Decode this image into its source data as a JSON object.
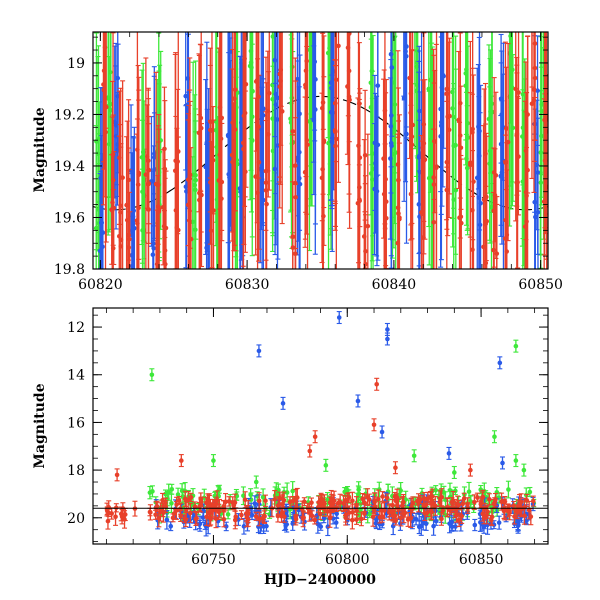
{
  "chart_data": [
    {
      "type": "scatter",
      "panel": "top",
      "title": "",
      "xlabel": "",
      "ylabel": "Magnitude",
      "xlim": [
        60819.5,
        60850.5
      ],
      "ylim": [
        19.8,
        18.88
      ],
      "y_inverted": true,
      "x_ticks": [
        60820,
        60830,
        60840,
        60850
      ],
      "x_tick_labels": [
        "60820",
        "60830",
        "60840",
        "60850"
      ],
      "y_ticks": [
        19,
        19.2,
        19.4,
        19.6,
        19.8
      ],
      "y_tick_labels": [
        "19",
        "19.2",
        "19.4",
        "19.6",
        "19.8"
      ],
      "legend": "none",
      "grid": false,
      "series": [
        {
          "color": "#e8402a",
          "points": [
            [
              60820.3,
              19.05,
              0.5
            ],
            [
              60820.8,
              19.5,
              0.4
            ],
            [
              60821.4,
              19.6,
              0.4
            ],
            [
              60821.9,
              19.7,
              0.35
            ],
            [
              60822.6,
              19.4,
              0.45
            ],
            [
              60823.2,
              19.5,
              0.4
            ],
            [
              60823.9,
              19.6,
              0.4
            ],
            [
              60824.4,
              19.55,
              0.4
            ],
            [
              60825.2,
              19.45,
              0.45
            ],
            [
              60826.1,
              19.5,
              0.4
            ],
            [
              60826.8,
              19.3,
              0.5
            ],
            [
              60827.6,
              19.45,
              0.4
            ],
            [
              60828.2,
              19.4,
              0.45
            ],
            [
              60829.1,
              19.35,
              0.5
            ],
            [
              60829.8,
              19.2,
              0.5
            ],
            [
              60830.7,
              19.3,
              0.5
            ],
            [
              60831.4,
              19.35,
              0.45
            ],
            [
              60832.3,
              19.1,
              0.5
            ],
            [
              60833.2,
              19.5,
              0.4
            ],
            [
              60834.0,
              19.2,
              0.5
            ],
            [
              60835.2,
              19.35,
              0.45
            ],
            [
              60836.1,
              19.1,
              0.5
            ],
            [
              60836.9,
              18.95,
              0.5
            ],
            [
              60837.6,
              19.4,
              0.4
            ],
            [
              60838.1,
              19.6,
              0.35
            ],
            [
              60839.4,
              19.4,
              0.45
            ],
            [
              60840.3,
              19.5,
              0.4
            ],
            [
              60841.2,
              19.3,
              0.5
            ],
            [
              60842.0,
              19.45,
              0.4
            ],
            [
              60842.8,
              19.5,
              0.45
            ],
            [
              60843.7,
              19.3,
              0.45
            ],
            [
              60844.5,
              19.4,
              0.45
            ],
            [
              60845.3,
              19.5,
              0.4
            ],
            [
              60846.2,
              19.55,
              0.4
            ],
            [
              60846.9,
              19.6,
              0.35
            ],
            [
              60847.7,
              19.5,
              0.4
            ],
            [
              60848.4,
              19.35,
              0.45
            ],
            [
              60849.0,
              19.4,
              0.45
            ],
            [
              60849.5,
              19.0,
              0.4
            ],
            [
              60850.3,
              19.45,
              0.45
            ]
          ]
        },
        {
          "color": "#2a5ae8",
          "points": [
            [
              60820.1,
              19.5,
              0.35
            ],
            [
              60821.1,
              19.3,
              0.4
            ],
            [
              60822.2,
              19.6,
              0.35
            ],
            [
              60823.6,
              19.55,
              0.35
            ],
            [
              60825.9,
              19.3,
              0.45
            ],
            [
              60827.3,
              19.5,
              0.4
            ],
            [
              60828.8,
              19.2,
              0.5
            ],
            [
              60829.6,
              19.4,
              0.45
            ],
            [
              60831.0,
              19.4,
              0.45
            ],
            [
              60832.0,
              19.2,
              0.5
            ],
            [
              60833.5,
              19.3,
              0.45
            ],
            [
              60834.6,
              19.05,
              0.5
            ],
            [
              60835.8,
              19.2,
              0.5
            ],
            [
              60838.8,
              19.3,
              0.5
            ],
            [
              60839.8,
              19.2,
              0.5
            ],
            [
              60840.8,
              19.1,
              0.5
            ],
            [
              60841.8,
              19.4,
              0.45
            ],
            [
              60843.3,
              19.2,
              0.45
            ],
            [
              60845.8,
              19.4,
              0.4
            ],
            [
              60847.4,
              19.3,
              0.4
            ],
            [
              60849.7,
              19.35,
              0.4
            ]
          ]
        },
        {
          "color": "#3ee83a",
          "points": [
            [
              60819.8,
              19.45,
              0.4
            ],
            [
              60820.6,
              19.2,
              0.45
            ],
            [
              60822.9,
              19.55,
              0.35
            ],
            [
              60824.0,
              19.45,
              0.4
            ],
            [
              60826.4,
              19.4,
              0.45
            ],
            [
              60828.0,
              19.35,
              0.45
            ],
            [
              60829.3,
              19.3,
              0.45
            ],
            [
              60830.3,
              19.2,
              0.5
            ],
            [
              60831.8,
              19.1,
              0.5
            ],
            [
              60833.0,
              19.25,
              0.45
            ],
            [
              60834.3,
              19.0,
              0.5
            ],
            [
              60835.6,
              19.15,
              0.5
            ],
            [
              60838.5,
              19.25,
              0.5
            ],
            [
              60840.0,
              19.2,
              0.5
            ],
            [
              60841.5,
              19.0,
              0.5
            ],
            [
              60842.5,
              19.3,
              0.45
            ],
            [
              60844.1,
              19.35,
              0.45
            ],
            [
              60845.0,
              19.2,
              0.45
            ],
            [
              60846.6,
              19.4,
              0.45
            ],
            [
              60848.0,
              19.1,
              0.45
            ],
            [
              60848.8,
              19.3,
              0.4
            ],
            [
              60850.1,
              19.3,
              0.45
            ]
          ]
        }
      ],
      "model_curve": {
        "color": "#000000",
        "period_days": 28,
        "center_mag": 19.35,
        "amplitude": 0.22,
        "phase_peak_x": 60835
      }
    },
    {
      "type": "scatter",
      "panel": "bottom",
      "title": "",
      "xlabel": "HJD−2400000",
      "ylabel": "Magnitude",
      "xlim": [
        60705,
        60875
      ],
      "ylim": [
        21.1,
        11.2
      ],
      "y_inverted": true,
      "x_ticks": [
        60750,
        60800,
        60850
      ],
      "x_tick_labels": [
        "60750",
        "60800",
        "60850"
      ],
      "y_ticks": [
        12,
        14,
        16,
        18,
        20
      ],
      "y_tick_labels": [
        "12",
        "14",
        "16",
        "18",
        "20"
      ],
      "reference_line_y": 19.6,
      "legend": "none",
      "grid": false,
      "outliers": [
        {
          "color": "#3ee83a",
          "x": 60727,
          "y": 14.0
        },
        {
          "color": "#2a5ae8",
          "x": 60767,
          "y": 13.0
        },
        {
          "color": "#2a5ae8",
          "x": 60776,
          "y": 15.2
        },
        {
          "color": "#2a5ae8",
          "x": 60797,
          "y": 11.6
        },
        {
          "color": "#2a5ae8",
          "x": 60804,
          "y": 15.1
        },
        {
          "color": "#2a5ae8",
          "x": 60815,
          "y": 12.1
        },
        {
          "color": "#2a5ae8",
          "x": 60815,
          "y": 12.5
        },
        {
          "color": "#e8402a",
          "x": 60811,
          "y": 14.4
        },
        {
          "color": "#e8402a",
          "x": 60810,
          "y": 16.1
        },
        {
          "color": "#2a5ae8",
          "x": 60813,
          "y": 16.4
        },
        {
          "color": "#2a5ae8",
          "x": 60857,
          "y": 13.5
        },
        {
          "color": "#3ee83a",
          "x": 60863,
          "y": 12.8
        },
        {
          "color": "#3ee83a",
          "x": 60855,
          "y": 16.6
        },
        {
          "color": "#2a5ae8",
          "x": 60858,
          "y": 17.7
        },
        {
          "color": "#3ee83a",
          "x": 60863,
          "y": 17.6
        },
        {
          "color": "#e8402a",
          "x": 60714,
          "y": 18.2
        },
        {
          "color": "#e8402a",
          "x": 60738,
          "y": 17.6
        },
        {
          "color": "#3ee83a",
          "x": 60750,
          "y": 17.6
        },
        {
          "color": "#3ee83a",
          "x": 60766,
          "y": 18.5
        },
        {
          "color": "#e8402a",
          "x": 60788,
          "y": 16.6
        },
        {
          "color": "#e8402a",
          "x": 60786,
          "y": 17.2
        },
        {
          "color": "#3ee83a",
          "x": 60792,
          "y": 17.8
        },
        {
          "color": "#e8402a",
          "x": 60818,
          "y": 17.9
        },
        {
          "color": "#3ee83a",
          "x": 60825,
          "y": 17.4
        },
        {
          "color": "#2a5ae8",
          "x": 60838,
          "y": 17.3
        },
        {
          "color": "#3ee83a",
          "x": 60840,
          "y": 18.1
        },
        {
          "color": "#e8402a",
          "x": 60846,
          "y": 18.0
        },
        {
          "color": "#3ee83a",
          "x": 60866,
          "y": 18.0
        }
      ],
      "dense_bands": [
        {
          "color": "#e8402a",
          "x_range": [
            60710,
            60722
          ],
          "y_center": 19.8,
          "y_spread": 0.35,
          "count": 14
        },
        {
          "color": "#3ee83a",
          "x_range": [
            60726,
            60870
          ],
          "y_center": 19.35,
          "y_spread": 0.55,
          "count": 170
        },
        {
          "color": "#2a5ae8",
          "x_range": [
            60728,
            60870
          ],
          "y_center": 19.85,
          "y_spread": 0.55,
          "count": 150
        },
        {
          "color": "#e8402a",
          "x_range": [
            60726,
            60870
          ],
          "y_center": 19.6,
          "y_spread": 0.5,
          "count": 260
        }
      ]
    }
  ]
}
